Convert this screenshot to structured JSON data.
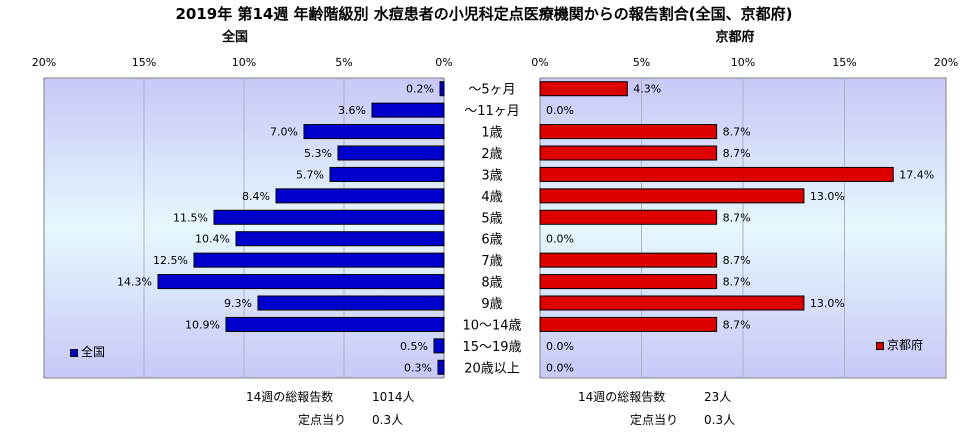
{
  "title": "2019年 第14週 年齢階級別 水痘患者の小児科定点医療機関からの報告割合(全国、京都府)",
  "chart_data": [
    {
      "type": "bar",
      "orientation": "horizontal",
      "direction": "right-to-left",
      "subtitle": "全国",
      "categories": [
        "～5ヶ月",
        "～11ヶ月",
        "1歳",
        "2歳",
        "3歳",
        "4歳",
        "5歳",
        "6歳",
        "7歳",
        "8歳",
        "9歳",
        "10～14歳",
        "15～19歳",
        "20歳以上"
      ],
      "values": [
        0.2,
        3.6,
        7.0,
        5.3,
        5.7,
        8.4,
        11.5,
        10.4,
        12.5,
        14.3,
        9.3,
        10.9,
        0.5,
        0.3
      ],
      "value_labels": [
        "0.2%",
        "3.6%",
        "7.0%",
        "5.3%",
        "5.7%",
        "8.4%",
        "11.5%",
        "10.4%",
        "12.5%",
        "14.3%",
        "9.3%",
        "10.9%",
        "0.5%",
        "0.3%"
      ],
      "xlim": [
        0,
        20
      ],
      "ticks": [
        "0%",
        "5%",
        "10%",
        "15%",
        "20%"
      ],
      "tick_values": [
        0,
        5,
        10,
        15,
        20
      ],
      "legend": "全国",
      "legend_position": "bottom-left",
      "bar_color": "#0000cc",
      "grid": true,
      "footer": {
        "total_label": "14週の総報告数",
        "total_value": "1014人",
        "per_label": "定点当り",
        "per_value": "0.3人"
      }
    },
    {
      "type": "bar",
      "orientation": "horizontal",
      "direction": "left-to-right",
      "subtitle": "京都府",
      "categories": [
        "～5ヶ月",
        "～11ヶ月",
        "1歳",
        "2歳",
        "3歳",
        "4歳",
        "5歳",
        "6歳",
        "7歳",
        "8歳",
        "9歳",
        "10～14歳",
        "15～19歳",
        "20歳以上"
      ],
      "values": [
        4.3,
        0.0,
        8.7,
        8.7,
        17.4,
        13.0,
        8.7,
        0.0,
        8.7,
        8.7,
        13.0,
        8.7,
        0.0,
        0.0
      ],
      "value_labels": [
        "4.3%",
        "0.0%",
        "8.7%",
        "8.7%",
        "17.4%",
        "13.0%",
        "8.7%",
        "0.0%",
        "8.7%",
        "8.7%",
        "13.0%",
        "8.7%",
        "0.0%",
        "0.0%"
      ],
      "xlim": [
        0,
        20
      ],
      "ticks": [
        "0%",
        "5%",
        "10%",
        "15%",
        "20%"
      ],
      "tick_values": [
        0,
        5,
        10,
        15,
        20
      ],
      "legend": "京都府",
      "legend_position": "bottom-right",
      "bar_color": "#dd0000",
      "grid": true,
      "footer": {
        "total_label": "14週の総報告数",
        "total_value": "23人",
        "per_label": "定点当り",
        "per_value": "0.3人"
      }
    }
  ],
  "category_labels": [
    "～5ヶ月",
    "～11ヶ月",
    "1歳",
    "2歳",
    "3歳",
    "4歳",
    "5歳",
    "6歳",
    "7歳",
    "8歳",
    "9歳",
    "10～14歳",
    "15～19歳",
    "20歳以上"
  ]
}
